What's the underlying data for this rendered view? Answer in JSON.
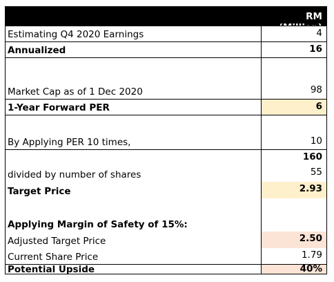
{
  "header": {
    "unit": "RM (Million)"
  },
  "rows": [
    {
      "label": "Estimating Q4 2020 Earnings",
      "value": "4"
    },
    {
      "label": "Annualized",
      "value": "16"
    },
    {
      "label": "",
      "value": ""
    },
    {
      "label": "Market Cap as of 1 Dec 2020",
      "value": "98"
    },
    {
      "label": "1-Year Forward PER",
      "value": "6"
    },
    {
      "label": "",
      "value": ""
    },
    {
      "label": "By Applying PER 10 times,",
      "value": "10"
    },
    {
      "label": "",
      "value": "160"
    },
    {
      "label": "divided by number of shares",
      "value": "55"
    },
    {
      "label": "Target Price",
      "value": "2.93"
    },
    {
      "label": "",
      "value": ""
    },
    {
      "label": "Applying Margin of Safety of 15%:",
      "value": ""
    },
    {
      "label": "Adjusted Target Price",
      "value": "2.50"
    },
    {
      "label": "Current Share Price",
      "value": "1.79"
    },
    {
      "label": "Potential Upside",
      "value": "40%"
    }
  ],
  "colors": {
    "header_bg": "#000000",
    "header_text": "#ffffff",
    "highlight_yellow": "#fff0cc",
    "highlight_pink": "#fbe4d6"
  }
}
